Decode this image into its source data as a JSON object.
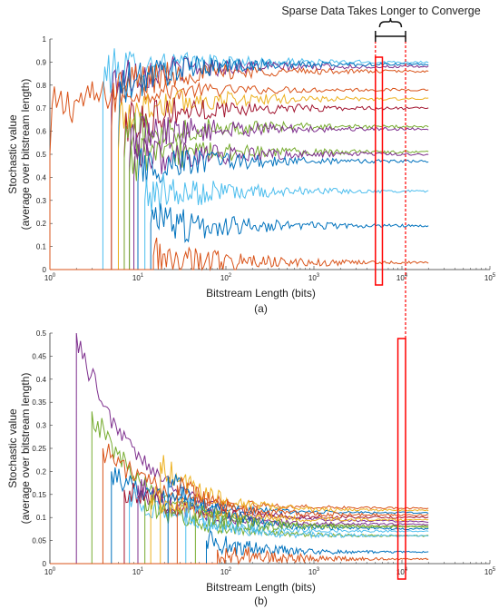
{
  "annotation": {
    "text": "Sparse Data Takes Longer to Converge",
    "box_color": "#ff0000"
  },
  "palette": [
    "#0072BD",
    "#D95319",
    "#EDB120",
    "#7E2F8E",
    "#77AC30",
    "#4DBEEE",
    "#A2142F"
  ],
  "chart_data": [
    {
      "type": "line",
      "panel_label": "(a)",
      "xlabel": "Bitstream Length (bits)",
      "ylabel": [
        "Stochastic value",
        "(average over bitstream length)"
      ],
      "xscale": "log",
      "xlim": [
        1,
        100000
      ],
      "ylim": [
        0,
        1
      ],
      "x_ticks": [
        {
          "v": 1,
          "exp": "0"
        },
        {
          "v": 10,
          "exp": "1"
        },
        {
          "v": 100,
          "exp": "2"
        },
        {
          "v": 1000,
          "exp": "3"
        },
        {
          "v": 10000,
          "exp": "4"
        },
        {
          "v": 100000,
          "exp": "5"
        }
      ],
      "y_ticks": [
        "0",
        "0.1",
        "0.2",
        "0.3",
        "0.4",
        "0.5",
        "0.6",
        "0.7",
        "0.8",
        "0.9",
        "1"
      ],
      "highlight_x": [
        5000,
        6000
      ],
      "series": [
        {
          "start": 1,
          "peak": 0.5,
          "final": 0.78,
          "color_index": 1
        },
        {
          "start": 4,
          "peak": 0.75,
          "final": 0.9,
          "color_index": 5
        },
        {
          "start": 5,
          "peak": 0.7,
          "final": 0.88,
          "color_index": 3
        },
        {
          "start": 5,
          "peak": 0.6,
          "final": 0.86,
          "color_index": 1
        },
        {
          "start": 6,
          "peak": 0.55,
          "final": 0.89,
          "color_index": 0
        },
        {
          "start": 6,
          "peak": 0.52,
          "final": 0.74,
          "color_index": 2
        },
        {
          "start": 7,
          "peak": 0.5,
          "final": 0.7,
          "color_index": 6
        },
        {
          "start": 7,
          "peak": 0.48,
          "final": 0.62,
          "color_index": 4
        },
        {
          "start": 8,
          "peak": 0.45,
          "final": 0.61,
          "color_index": 3
        },
        {
          "start": 8,
          "peak": 0.42,
          "final": 0.51,
          "color_index": 4
        },
        {
          "start": 9,
          "peak": 0.4,
          "final": 0.5,
          "color_index": 3
        },
        {
          "start": 10,
          "peak": 0.38,
          "final": 0.47,
          "color_index": 0
        },
        {
          "start": 12,
          "peak": 0.3,
          "final": 0.34,
          "color_index": 5
        },
        {
          "start": 14,
          "peak": 0.2,
          "final": 0.19,
          "color_index": 0
        },
        {
          "start": 15,
          "peak": 0.06,
          "final": 0.03,
          "color_index": 1
        }
      ]
    },
    {
      "type": "line",
      "panel_label": "(b)",
      "xlabel": "Bitstream Length (bits)",
      "ylabel": [
        "Stochastic value",
        "(average over bitstream length)"
      ],
      "xscale": "log",
      "xlim": [
        1,
        100000
      ],
      "ylim": [
        0,
        0.5
      ],
      "x_ticks": [
        {
          "v": 1,
          "exp": "0"
        },
        {
          "v": 10,
          "exp": "1"
        },
        {
          "v": 100,
          "exp": "2"
        },
        {
          "v": 1000,
          "exp": "3"
        },
        {
          "v": 10000,
          "exp": "4"
        },
        {
          "v": 100000,
          "exp": "5"
        }
      ],
      "y_ticks": [
        "0",
        "0.05",
        "0.1",
        "0.15",
        "0.2",
        "0.25",
        "0.3",
        "0.35",
        "0.4",
        "0.45",
        "0.5"
      ],
      "highlight_x": [
        9000,
        11000
      ],
      "series": [
        {
          "start": 2,
          "peak": 0.5,
          "final": 0.09,
          "color_index": 3
        },
        {
          "start": 3,
          "peak": 0.33,
          "final": 0.08,
          "color_index": 4
        },
        {
          "start": 4,
          "peak": 0.25,
          "final": 0.12,
          "color_index": 1
        },
        {
          "start": 5,
          "peak": 0.2,
          "final": 0.11,
          "color_index": 0
        },
        {
          "start": 7,
          "peak": 0.16,
          "final": 0.1,
          "color_index": 6
        },
        {
          "start": 8,
          "peak": 0.15,
          "final": 0.07,
          "color_index": 5
        },
        {
          "start": 10,
          "peak": 0.17,
          "final": 0.085,
          "color_index": 3
        },
        {
          "start": 12,
          "peak": 0.14,
          "final": 0.06,
          "color_index": 4
        },
        {
          "start": 14,
          "peak": 0.15,
          "final": 0.095,
          "color_index": 2
        },
        {
          "start": 18,
          "peak": 0.22,
          "final": 0.115,
          "color_index": 2
        },
        {
          "start": 22,
          "peak": 0.19,
          "final": 0.075,
          "color_index": 0
        },
        {
          "start": 28,
          "peak": 0.17,
          "final": 0.105,
          "color_index": 1
        },
        {
          "start": 35,
          "peak": 0.12,
          "final": 0.06,
          "color_index": 5
        },
        {
          "start": 45,
          "peak": 0.11,
          "final": 0.08,
          "color_index": 4
        },
        {
          "start": 60,
          "peak": 0.05,
          "final": 0.025,
          "color_index": 0
        },
        {
          "start": 80,
          "peak": 0.03,
          "final": 0.01,
          "color_index": 1
        }
      ]
    }
  ]
}
